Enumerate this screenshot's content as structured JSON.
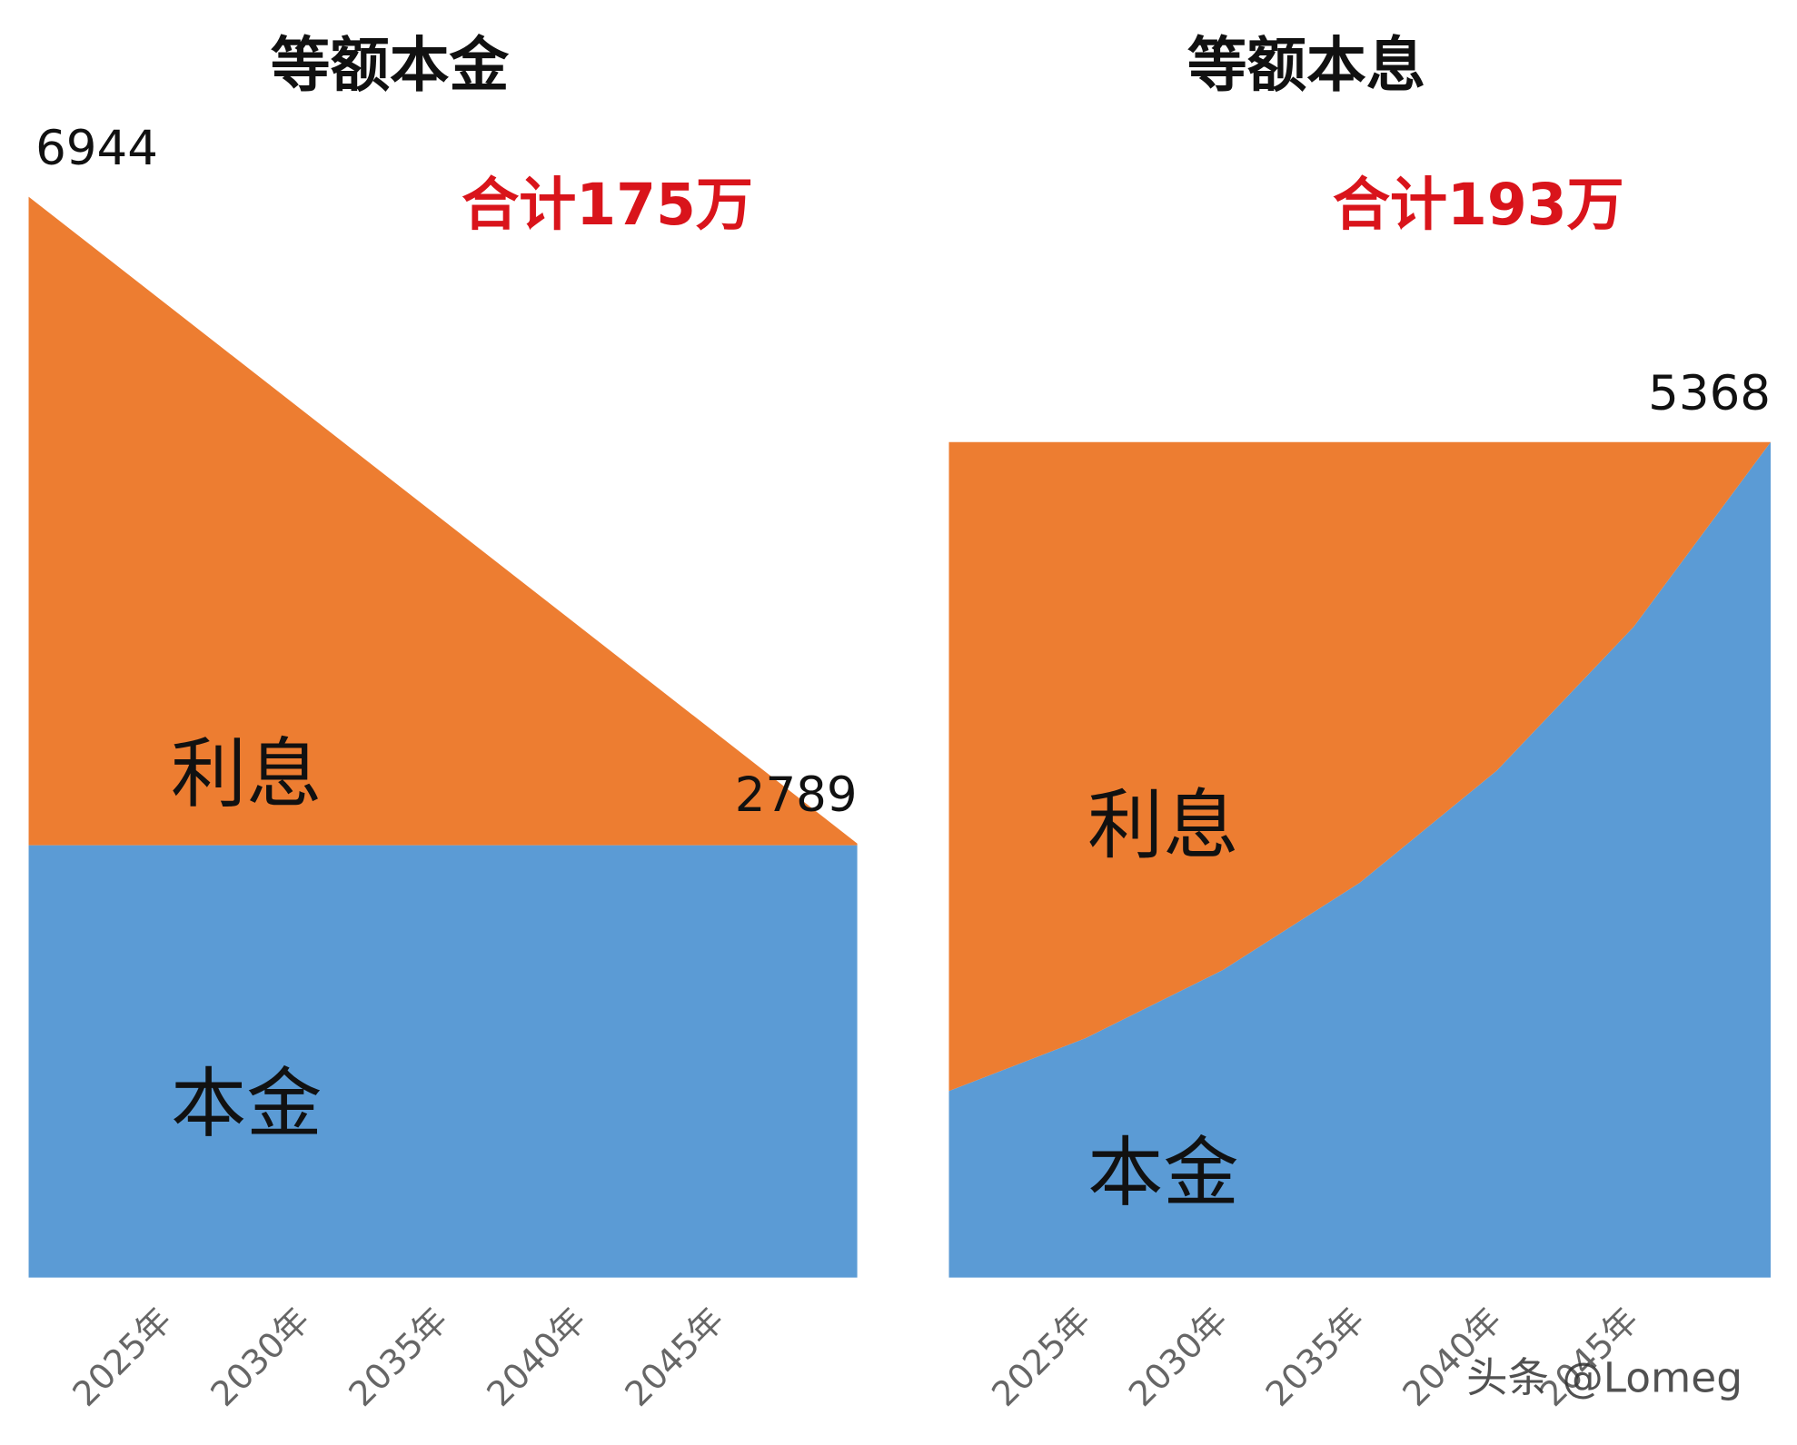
{
  "chart_data": [
    {
      "type": "area",
      "title": "等额本金",
      "subtitle": "合计175万",
      "x": [
        2020,
        2050
      ],
      "series": [
        {
          "name": "本金",
          "color": "#5b9bd5",
          "values": [
            2778,
            2778
          ]
        },
        {
          "name": "利息",
          "color": "#ed7d31",
          "values": [
            4166,
            11
          ]
        }
      ],
      "point_labels": [
        {
          "x": 2020,
          "value": 6944
        },
        {
          "x": 2050,
          "value": 2789
        }
      ],
      "xlim": [
        2020,
        2050
      ],
      "ylim": [
        0,
        7000
      ],
      "xticks": [
        {
          "value": 2025,
          "label": "2025年"
        },
        {
          "value": 2030,
          "label": "2030年"
        },
        {
          "value": 2035,
          "label": "2035年"
        },
        {
          "value": 2040,
          "label": "2040年"
        },
        {
          "value": 2045,
          "label": "2045年"
        }
      ]
    },
    {
      "type": "area",
      "title": "等额本息",
      "subtitle": "合计193万",
      "x": [
        2020,
        2025,
        2030,
        2035,
        2040,
        2045,
        2050
      ],
      "series": [
        {
          "name": "本金",
          "color": "#5b9bd5",
          "values": [
            1199,
            1539,
            1976,
            2537,
            3257,
            4181,
            5368
          ]
        },
        {
          "name": "利息",
          "color": "#ed7d31",
          "values": [
            4169,
            3829,
            3392,
            2831,
            2111,
            1187,
            0
          ]
        }
      ],
      "point_labels": [
        {
          "x": 2050,
          "value": 5368
        }
      ],
      "xlim": [
        2020,
        2050
      ],
      "ylim": [
        0,
        7000
      ],
      "xticks": [
        {
          "value": 2025,
          "label": "2025年"
        },
        {
          "value": 2030,
          "label": "2030年"
        },
        {
          "value": 2035,
          "label": "2035年"
        },
        {
          "value": 2040,
          "label": "2040年"
        },
        {
          "value": 2045,
          "label": "2045年"
        }
      ]
    }
  ],
  "watermark": "头条 @Lomeg"
}
